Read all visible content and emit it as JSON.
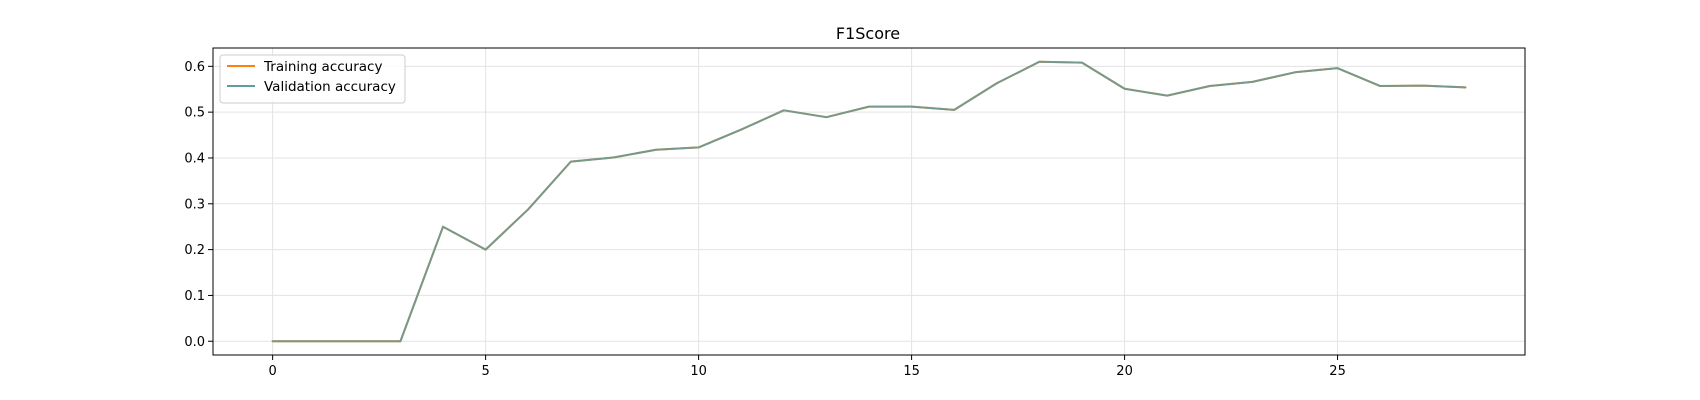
{
  "chart_data": {
    "type": "line",
    "title": "F1Score",
    "xlabel": "",
    "ylabel": "",
    "xlim": [
      -1.4,
      29.4
    ],
    "ylim": [
      -0.03,
      0.64
    ],
    "xticks": [
      0,
      5,
      10,
      15,
      20,
      25
    ],
    "yticks": [
      0.0,
      0.1,
      0.2,
      0.3,
      0.4,
      0.5,
      0.6
    ],
    "grid": true,
    "legend_position": "top-left",
    "x": [
      0,
      1,
      2,
      3,
      4,
      5,
      6,
      7,
      8,
      9,
      10,
      11,
      12,
      13,
      14,
      15,
      16,
      17,
      18,
      19,
      20,
      21,
      22,
      23,
      24,
      25,
      26,
      27,
      28
    ],
    "series": [
      {
        "name": "Training accuracy",
        "color": "#ff7f0e",
        "values": [
          0.0,
          0.0,
          0.0,
          0.0,
          0.25,
          0.2,
          0.288,
          0.392,
          0.401,
          0.418,
          0.423,
          0.462,
          0.504,
          0.489,
          0.512,
          0.512,
          0.505,
          0.563,
          0.61,
          0.608,
          0.551,
          0.536,
          0.557,
          0.566,
          0.587,
          0.596,
          0.557,
          0.558,
          0.554
        ]
      },
      {
        "name": "Validation accuracy",
        "color": "#5f9ea0",
        "values": [
          0.0,
          0.0,
          0.0,
          0.0,
          0.25,
          0.2,
          0.288,
          0.392,
          0.401,
          0.418,
          0.423,
          0.462,
          0.504,
          0.489,
          0.512,
          0.512,
          0.505,
          0.563,
          0.61,
          0.608,
          0.551,
          0.536,
          0.557,
          0.566,
          0.587,
          0.596,
          0.557,
          0.558,
          0.554
        ]
      }
    ]
  }
}
